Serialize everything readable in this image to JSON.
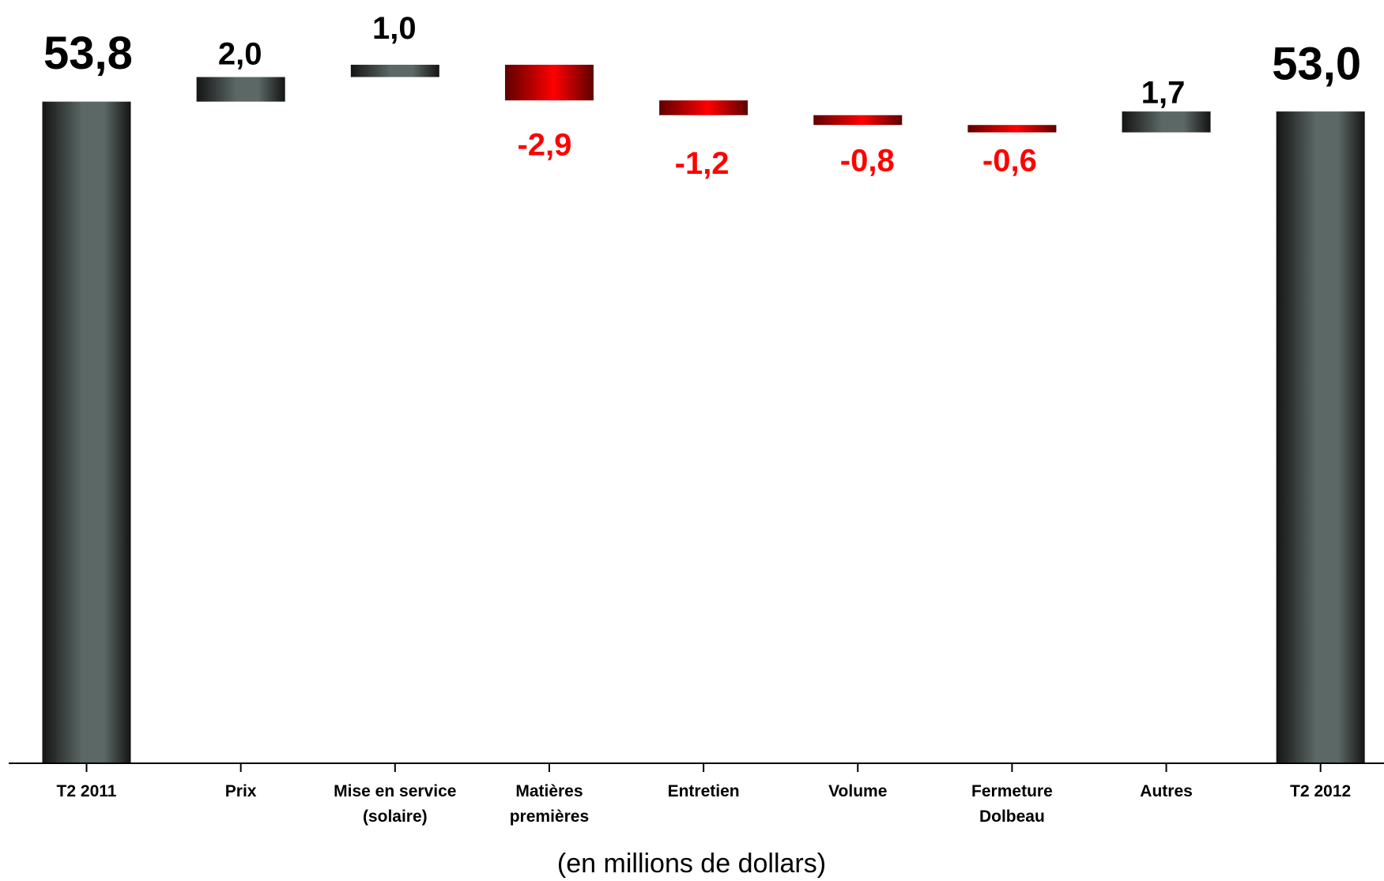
{
  "chart_data": {
    "type": "bar",
    "subtype": "waterfall",
    "categories": [
      [
        "T2 2011"
      ],
      [
        "Prix"
      ],
      [
        "Mise en service",
        "(solaire)"
      ],
      [
        "Matières",
        "premières"
      ],
      [
        "Entretien"
      ],
      [
        "Volume"
      ],
      [
        "Fermeture",
        "Dolbeau"
      ],
      [
        "Autres"
      ],
      [
        "T2 2012"
      ]
    ],
    "values": [
      53.8,
      2.0,
      1.0,
      -2.9,
      -1.2,
      -0.8,
      -0.6,
      1.7,
      53.0
    ],
    "kinds": [
      "total",
      "change",
      "change",
      "change",
      "change",
      "change",
      "change",
      "change",
      "total"
    ],
    "labels": [
      "53,8",
      "2,0",
      "1,0",
      "-2,9",
      "-1,2",
      "-0,8",
      "-0,6",
      "1,7",
      "53,0"
    ],
    "xlabel": "(en millions de dollars)",
    "ylim": [
      0,
      62
    ],
    "grid": false,
    "legend": "none",
    "colors": {
      "bar_dark_edge": "#141414",
      "bar_gray_center": "#5b6865",
      "bar_red_edge": "#5e0000",
      "bar_red_center": "#ff0000",
      "positive_label": "#000000",
      "negative_label": "#ff0000",
      "axis": "#000000"
    }
  }
}
